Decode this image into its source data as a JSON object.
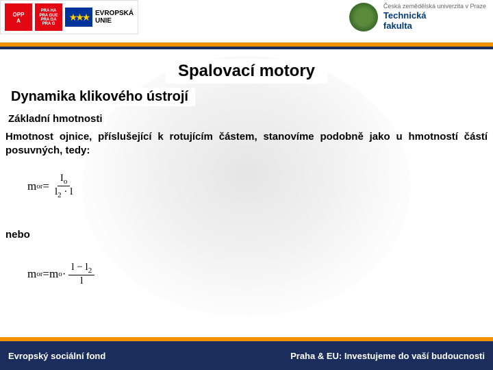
{
  "header": {
    "oppa": "OPP\nA",
    "praha": "PRA HA\nPRA GUE\nPRA GA\nPRA G",
    "eu_label": "EVROPSKÁ\nUNIE",
    "czu_label": "Česká zemědělská univerzita v Praze",
    "faculty_label": "Technická\nfakulta"
  },
  "content": {
    "title": "Spalovací motory",
    "subtitle": "Dynamika klikového ústrojí",
    "section_label": "Základní hmotnosti",
    "body_text": "Hmotnost ojnice, příslušející k rotujícím částem, stanovíme podobně jako u hmotností částí posuvných, tedy:",
    "formula1": {
      "lhs": "m",
      "lhs_sub": "or",
      "eq": " = ",
      "num": "I",
      "num_sub": "o",
      "den_left": "l",
      "den_sub": "2",
      "den_right": " · l"
    },
    "nebo": "nebo",
    "formula2": {
      "lhs": "m",
      "lhs_sub": "or",
      "eq": " = ",
      "rhs1": "m",
      "rhs1_sub": "o",
      "dot": " · ",
      "num_left": "l − l",
      "num_sub": "2",
      "den": "l"
    }
  },
  "footer": {
    "left": "Evropský sociální fond",
    "right": "Praha & EU: Investujeme do vaší budoucnosti"
  },
  "colors": {
    "orange": "#f39200",
    "navy": "#1a2d5c",
    "red": "#e30613",
    "eu_blue": "#003399",
    "eu_gold": "#ffcc00"
  }
}
